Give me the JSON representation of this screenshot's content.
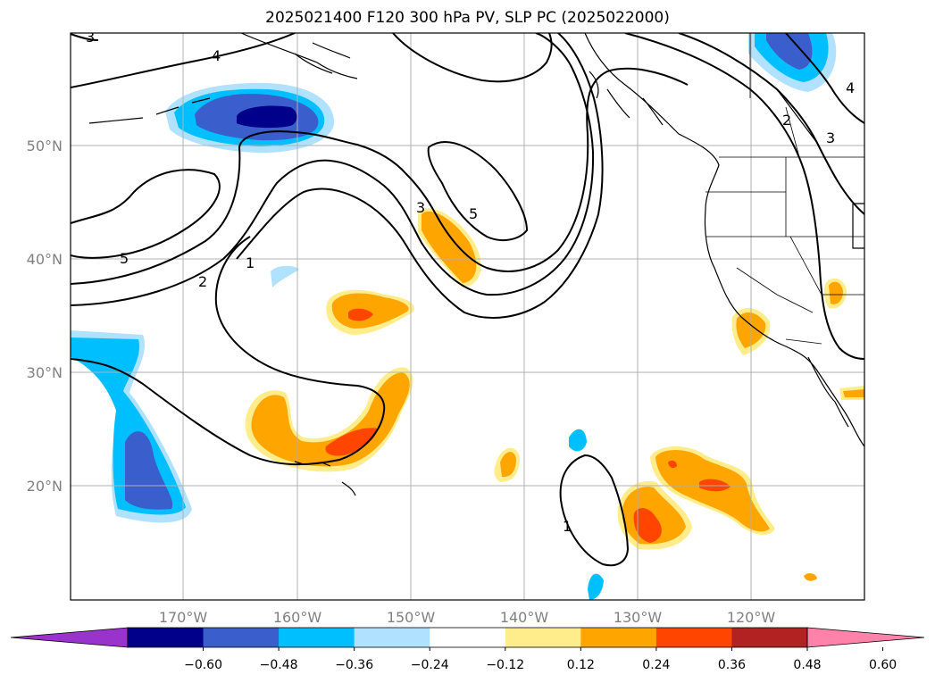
{
  "title": "2025021400 F120 300 hPa PV, SLP PC (2025022000)",
  "lon_ticks": [
    "170°W",
    "160°W",
    "150°W",
    "140°W",
    "130°W",
    "120°W"
  ],
  "lat_ticks": [
    "50°N",
    "40°N",
    "30°N",
    "20°N"
  ],
  "colorbar": {
    "ticks": [
      "−0.60",
      "−0.48",
      "−0.36",
      "−0.24",
      "−0.12",
      "0.12",
      "0.24",
      "0.36",
      "0.48",
      "0.60"
    ],
    "colors": [
      "#9933cc",
      "#00008b",
      "#3a5fcd",
      "#00bfff",
      "#b0e2ff",
      "#ffffff",
      "#ffec8b",
      "#ffa500",
      "#ff4500",
      "#b22222",
      "#ff82ab"
    ]
  },
  "contour_labels": [
    "3",
    "4",
    "5",
    "2",
    "1",
    "3",
    "5",
    "2",
    "3",
    "4",
    "1"
  ],
  "colors": {
    "grid": "#b0b0b0",
    "tick_text": "#808080"
  }
}
